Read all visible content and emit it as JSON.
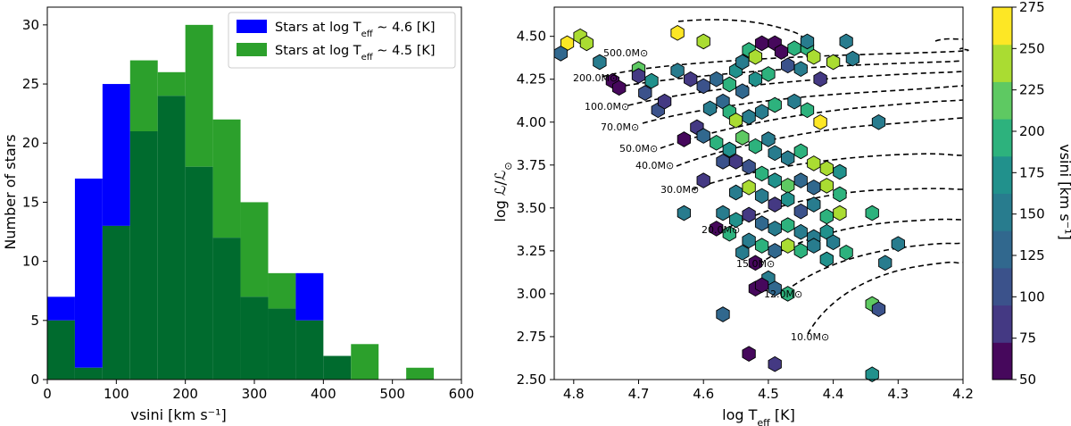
{
  "chart_data": [
    {
      "type": "bar",
      "subtype": "overlaid-histogram",
      "xlabel": "vsini [km s⁻¹]",
      "ylabel": "Number of stars",
      "xlim": [
        0,
        600
      ],
      "ylim": [
        0,
        31.5
      ],
      "xticks": [
        "0",
        "100",
        "200",
        "300",
        "400",
        "500",
        "600"
      ],
      "yticks": [
        "0",
        "5",
        "10",
        "15",
        "20",
        "25",
        "30"
      ],
      "bin_edges": [
        0,
        40,
        80,
        120,
        160,
        200,
        240,
        280,
        320,
        360,
        400,
        440,
        480,
        520,
        560
      ],
      "legend_position": "top-right",
      "series": [
        {
          "name": "Stars at log T_eff ~ 4.6 [K]",
          "color": "#0000ff",
          "values": [
            7,
            17,
            25,
            21,
            24,
            18,
            12,
            7,
            6,
            9,
            2,
            0,
            0,
            0
          ]
        },
        {
          "name": "Stars at log T_eff ~ 4.5 [K]",
          "color": "#2ca02c",
          "values": [
            5,
            1,
            13,
            27,
            26,
            30,
            22,
            15,
            9,
            5,
            2,
            3,
            0,
            1
          ]
        }
      ],
      "overlap_color": "#006b2e"
    },
    {
      "type": "scatter",
      "subtype": "hexbin-hr-diagram",
      "xlabel": "log T_eff [K]",
      "ylabel": "log ℒ/ℒ⊙",
      "xlim": [
        4.83,
        4.2
      ],
      "ylim": [
        2.5,
        4.67
      ],
      "xticks": [
        "4.8",
        "4.7",
        "4.6",
        "4.5",
        "4.4",
        "4.3",
        "4.2"
      ],
      "yticks": [
        "2.50",
        "2.75",
        "3.00",
        "3.25",
        "3.50",
        "3.75",
        "4.00",
        "4.25",
        "4.50"
      ],
      "colorbar": {
        "label": "vsini [km s⁻¹]",
        "ticks": [
          "50",
          "75",
          "100",
          "125",
          "150",
          "175",
          "200",
          "225",
          "250",
          "275"
        ],
        "range": [
          50,
          275
        ],
        "colors": [
          "#46085c",
          "#443983",
          "#3b528b",
          "#31688e",
          "#287c8e",
          "#21918c",
          "#2db27d",
          "#5ec962",
          "#aadc32",
          "#fde725"
        ]
      },
      "track_labels": [
        "500.0M⊙",
        "200.0M⊙",
        "100.0M⊙",
        "70.0M⊙",
        "50.0M⊙",
        "40.0M⊙",
        "30.0M⊙",
        "20.0M⊙",
        "15.0M⊙",
        "12.0M⊙",
        "10.0M⊙"
      ],
      "points": [
        [
          4.79,
          4.5,
          250
        ],
        [
          4.78,
          4.46,
          250
        ],
        [
          4.81,
          4.46,
          260
        ],
        [
          4.82,
          4.4,
          130
        ],
        [
          4.76,
          4.35,
          140
        ],
        [
          4.74,
          4.24,
          60
        ],
        [
          4.73,
          4.2,
          70
        ],
        [
          4.68,
          4.24,
          180
        ],
        [
          4.69,
          4.17,
          110
        ],
        [
          4.67,
          4.07,
          100
        ],
        [
          4.66,
          4.12,
          90
        ],
        [
          4.7,
          4.31,
          220
        ],
        [
          4.7,
          4.27,
          90
        ],
        [
          4.64,
          4.3,
          150
        ],
        [
          4.6,
          4.47,
          230
        ],
        [
          4.64,
          4.52,
          260
        ],
        [
          4.62,
          4.25,
          90
        ],
        [
          4.6,
          4.21,
          110
        ],
        [
          4.58,
          4.25,
          130
        ],
        [
          4.56,
          4.22,
          200
        ],
        [
          4.55,
          4.3,
          170
        ],
        [
          4.54,
          4.35,
          140
        ],
        [
          4.53,
          4.42,
          200
        ],
        [
          4.52,
          4.38,
          230
        ],
        [
          4.51,
          4.46,
          60
        ],
        [
          4.49,
          4.46,
          60
        ],
        [
          4.48,
          4.41,
          70
        ],
        [
          4.46,
          4.43,
          200
        ],
        [
          4.44,
          4.43,
          190
        ],
        [
          4.43,
          4.38,
          240
        ],
        [
          4.4,
          4.35,
          240
        ],
        [
          4.37,
          4.37,
          150
        ],
        [
          4.38,
          4.47,
          160
        ],
        [
          4.44,
          4.47,
          150
        ],
        [
          4.42,
          4.25,
          90
        ],
        [
          4.45,
          4.31,
          140
        ],
        [
          4.47,
          4.33,
          110
        ],
        [
          4.5,
          4.28,
          190
        ],
        [
          4.52,
          4.25,
          170
        ],
        [
          4.54,
          4.18,
          130
        ],
        [
          4.57,
          4.12,
          120
        ],
        [
          4.59,
          4.08,
          140
        ],
        [
          4.56,
          4.06,
          190
        ],
        [
          4.55,
          4.01,
          230
        ],
        [
          4.53,
          4.03,
          160
        ],
        [
          4.51,
          4.06,
          150
        ],
        [
          4.49,
          4.1,
          200
        ],
        [
          4.46,
          4.12,
          160
        ],
        [
          4.44,
          4.07,
          190
        ],
        [
          4.42,
          4.0,
          270
        ],
        [
          4.33,
          4.0,
          140
        ],
        [
          4.61,
          3.97,
          90
        ],
        [
          4.63,
          3.9,
          70
        ],
        [
          4.6,
          3.92,
          120
        ],
        [
          4.58,
          3.88,
          200
        ],
        [
          4.56,
          3.84,
          170
        ],
        [
          4.54,
          3.91,
          220
        ],
        [
          4.52,
          3.86,
          190
        ],
        [
          4.5,
          3.9,
          160
        ],
        [
          4.49,
          3.82,
          150
        ],
        [
          4.47,
          3.79,
          140
        ],
        [
          4.45,
          3.83,
          200
        ],
        [
          4.43,
          3.76,
          250
        ],
        [
          4.41,
          3.73,
          250
        ],
        [
          4.39,
          3.71,
          170
        ],
        [
          4.57,
          3.77,
          100
        ],
        [
          4.55,
          3.77,
          80
        ],
        [
          4.53,
          3.74,
          110
        ],
        [
          4.51,
          3.7,
          200
        ],
        [
          4.49,
          3.66,
          170
        ],
        [
          4.47,
          3.63,
          210
        ],
        [
          4.45,
          3.66,
          120
        ],
        [
          4.43,
          3.62,
          130
        ],
        [
          4.41,
          3.63,
          240
        ],
        [
          4.39,
          3.58,
          200
        ],
        [
          4.6,
          3.66,
          80
        ],
        [
          4.55,
          3.59,
          140
        ],
        [
          4.53,
          3.62,
          250
        ],
        [
          4.51,
          3.57,
          160
        ],
        [
          4.49,
          3.52,
          90
        ],
        [
          4.47,
          3.55,
          170
        ],
        [
          4.45,
          3.48,
          110
        ],
        [
          4.43,
          3.52,
          140
        ],
        [
          4.41,
          3.45,
          200
        ],
        [
          4.39,
          3.47,
          230
        ],
        [
          4.63,
          3.47,
          150
        ],
        [
          4.57,
          3.47,
          140
        ],
        [
          4.55,
          3.43,
          170
        ],
        [
          4.53,
          3.46,
          90
        ],
        [
          4.51,
          3.41,
          130
        ],
        [
          4.49,
          3.38,
          150
        ],
        [
          4.47,
          3.4,
          190
        ],
        [
          4.45,
          3.36,
          140
        ],
        [
          4.43,
          3.33,
          160
        ],
        [
          4.41,
          3.36,
          170
        ],
        [
          4.4,
          3.3,
          150
        ],
        [
          4.58,
          3.38,
          60
        ],
        [
          4.56,
          3.35,
          200
        ],
        [
          4.53,
          3.31,
          160
        ],
        [
          4.51,
          3.28,
          190
        ],
        [
          4.49,
          3.25,
          130
        ],
        [
          4.47,
          3.28,
          250
        ],
        [
          4.45,
          3.25,
          200
        ],
        [
          4.43,
          3.28,
          150
        ],
        [
          4.41,
          3.2,
          170
        ],
        [
          4.38,
          3.24,
          190
        ],
        [
          4.54,
          3.24,
          150
        ],
        [
          4.52,
          3.18,
          60
        ],
        [
          4.5,
          3.09,
          140
        ],
        [
          4.52,
          3.03,
          60
        ],
        [
          4.51,
          3.05,
          70
        ],
        [
          4.49,
          3.03,
          120
        ],
        [
          4.47,
          3.0,
          200
        ],
        [
          4.34,
          3.47,
          200
        ],
        [
          4.3,
          3.29,
          150
        ],
        [
          4.32,
          3.18,
          150
        ],
        [
          4.34,
          2.94,
          220
        ],
        [
          4.33,
          2.91,
          110
        ],
        [
          4.57,
          2.88,
          120
        ],
        [
          4.53,
          2.65,
          60
        ],
        [
          4.49,
          2.59,
          90
        ],
        [
          4.34,
          2.53,
          180
        ]
      ]
    }
  ]
}
